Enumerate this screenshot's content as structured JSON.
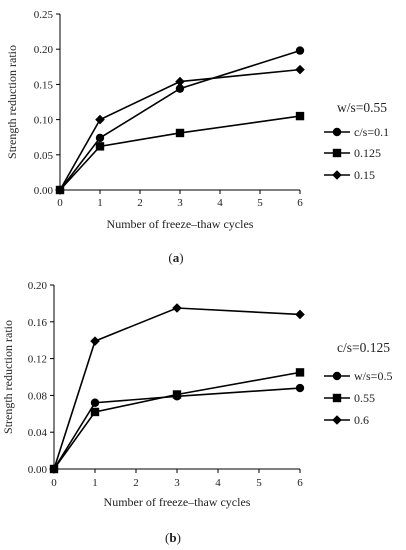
{
  "chart_data": [
    {
      "type": "line",
      "panel_label": "a",
      "xlabel": "Number of freeze–thaw cycles",
      "ylabel": "Strength reduction ratio",
      "legend_title": "w/s=0.55",
      "legend_position": "right",
      "xlim": [
        0,
        6
      ],
      "ylim": [
        0,
        0.25
      ],
      "xticks": [
        "0",
        "1",
        "2",
        "3",
        "4",
        "5",
        "6"
      ],
      "yticks": [
        "0.00",
        "0.05",
        "0.10",
        "0.15",
        "0.20",
        "0.25"
      ],
      "grid": false,
      "x": [
        0,
        1,
        3,
        6
      ],
      "series": [
        {
          "name": "c/s=0.1",
          "marker": "circle",
          "values": [
            0,
            0.074,
            0.144,
            0.198
          ]
        },
        {
          "name": "0.125",
          "marker": "square",
          "values": [
            0,
            0.062,
            0.081,
            0.105
          ]
        },
        {
          "name": "0.15",
          "marker": "diamond",
          "values": [
            0,
            0.1,
            0.154,
            0.171
          ]
        }
      ]
    },
    {
      "type": "line",
      "panel_label": "b",
      "xlabel": "Number of freeze–thaw cycles",
      "ylabel": "Strength reduction ratio",
      "legend_title": "c/s=0.125",
      "legend_position": "right",
      "xlim": [
        0,
        6
      ],
      "ylim": [
        0,
        0.2
      ],
      "xticks": [
        "0",
        "1",
        "2",
        "3",
        "4",
        "5",
        "6"
      ],
      "yticks": [
        "0.00",
        "0.04",
        "0.08",
        "0.12",
        "0.16",
        "0.20"
      ],
      "grid": false,
      "x": [
        0,
        1,
        3,
        6
      ],
      "series": [
        {
          "name": "w/s=0.5",
          "marker": "circle",
          "values": [
            0,
            0.072,
            0.079,
            0.088
          ]
        },
        {
          "name": "0.55",
          "marker": "square",
          "values": [
            0,
            0.062,
            0.081,
            0.105
          ]
        },
        {
          "name": "0.6",
          "marker": "diamond",
          "values": [
            0,
            0.139,
            0.175,
            0.168
          ]
        }
      ]
    }
  ]
}
